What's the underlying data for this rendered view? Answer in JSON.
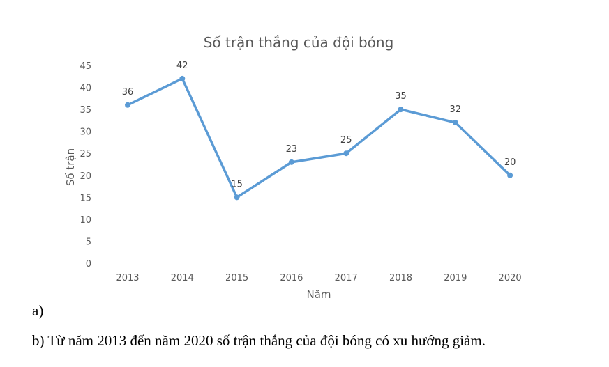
{
  "chart_data": {
    "type": "line",
    "title": "Số trận thắng của đội bóng",
    "xlabel": "Năm",
    "ylabel": "Số trận",
    "categories": [
      "2013",
      "2014",
      "2015",
      "2016",
      "2017",
      "2018",
      "2019",
      "2020"
    ],
    "values": [
      36,
      42,
      15,
      23,
      25,
      35,
      32,
      20
    ],
    "ylim": [
      0,
      45
    ],
    "yticks": [
      0,
      5,
      10,
      15,
      20,
      25,
      30,
      35,
      40,
      45
    ],
    "grid": false,
    "data_labels": true,
    "color": "#5B9BD5"
  },
  "text": {
    "a": "a)",
    "b": "b) Từ năm 2013 đến năm 2020 số trận thắng của đội bóng có xu hướng giảm."
  }
}
